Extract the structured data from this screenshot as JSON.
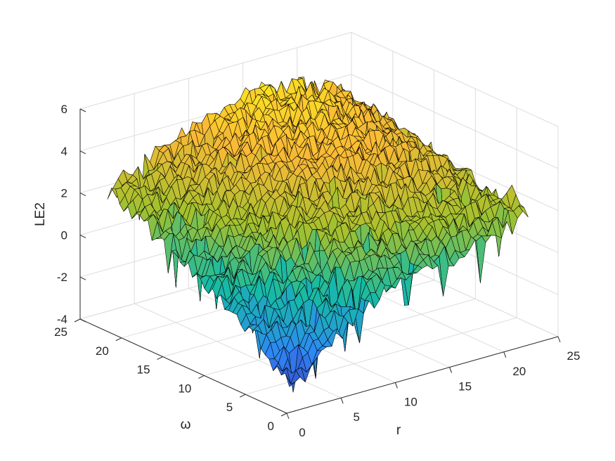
{
  "chart_data": {
    "type": "surface",
    "xlabel": "r",
    "ylabel": "ω",
    "zlabel": "LE2",
    "xlim": [
      0,
      25
    ],
    "ylim": [
      0,
      25
    ],
    "zlim": [
      -4,
      6
    ],
    "x_ticks": [
      0,
      5,
      10,
      15,
      20,
      25
    ],
    "y_ticks": [
      0,
      5,
      10,
      15,
      20,
      25
    ],
    "z_ticks": [
      -4,
      -2,
      0,
      2,
      4,
      6
    ],
    "x_tick_labels": [
      "0",
      "5",
      "10",
      "15",
      "20",
      "25"
    ],
    "y_tick_labels": [
      "0",
      "5",
      "10",
      "15",
      "20",
      "25"
    ],
    "z_tick_labels": [
      "-4",
      "-2",
      "0",
      "2",
      "4",
      "6"
    ],
    "grid": true,
    "colormap": "parula",
    "colors": [
      "#3e26a8",
      "#2e87f7",
      "#16bba4",
      "#a3c12e",
      "#fbb936",
      "#f9fb15"
    ],
    "edge_color": "#000000",
    "surface_x": [
      1,
      3,
      5,
      7,
      9,
      11,
      13,
      15,
      17,
      19,
      21,
      23
    ],
    "surface_y": [
      1,
      3,
      5,
      7,
      9,
      11,
      13,
      15,
      17,
      19,
      21,
      23
    ],
    "surface_z": [
      [
        -3.2,
        -2.6,
        -1.4,
        -0.8,
        -0.1,
        0.3,
        0.6,
        0.8,
        1.0,
        1.2,
        1.5,
        2.0
      ],
      [
        -2.2,
        -1.6,
        -0.6,
        0.1,
        0.6,
        1.0,
        1.3,
        1.6,
        1.8,
        2.0,
        2.3,
        2.6
      ],
      [
        -1.4,
        -0.8,
        0.1,
        0.8,
        1.4,
        1.8,
        2.1,
        2.3,
        2.4,
        2.4,
        2.3,
        2.0
      ],
      [
        -0.9,
        -0.2,
        0.7,
        1.4,
        2.0,
        2.4,
        2.7,
        2.9,
        3.0,
        3.0,
        2.8,
        2.4
      ],
      [
        -0.4,
        0.3,
        1.2,
        1.9,
        2.5,
        2.9,
        3.2,
        3.4,
        3.5,
        3.4,
        3.1,
        2.6
      ],
      [
        0.0,
        0.7,
        1.6,
        2.3,
        2.9,
        3.3,
        3.6,
        3.8,
        3.8,
        3.7,
        3.3,
        2.7
      ],
      [
        0.4,
        1.1,
        1.9,
        2.6,
        3.2,
        3.6,
        3.9,
        4.1,
        4.1,
        3.9,
        3.5,
        2.9
      ],
      [
        0.8,
        1.4,
        2.2,
        2.9,
        3.5,
        3.9,
        4.2,
        4.3,
        4.3,
        4.1,
        3.7,
        3.0
      ],
      [
        1.2,
        1.8,
        2.5,
        3.2,
        3.7,
        4.1,
        4.4,
        4.5,
        4.5,
        4.3,
        3.9,
        3.2
      ],
      [
        1.6,
        2.1,
        2.8,
        3.4,
        3.9,
        4.3,
        4.6,
        4.8,
        4.7,
        4.5,
        4.1,
        3.4
      ],
      [
        2.0,
        2.5,
        3.1,
        3.6,
        4.1,
        4.5,
        4.8,
        5.0,
        4.9,
        4.7,
        4.3,
        3.6
      ],
      [
        2.3,
        2.8,
        3.3,
        3.8,
        4.2,
        4.6,
        4.9,
        5.1,
        5.0,
        4.8,
        4.4,
        3.7
      ]
    ]
  }
}
